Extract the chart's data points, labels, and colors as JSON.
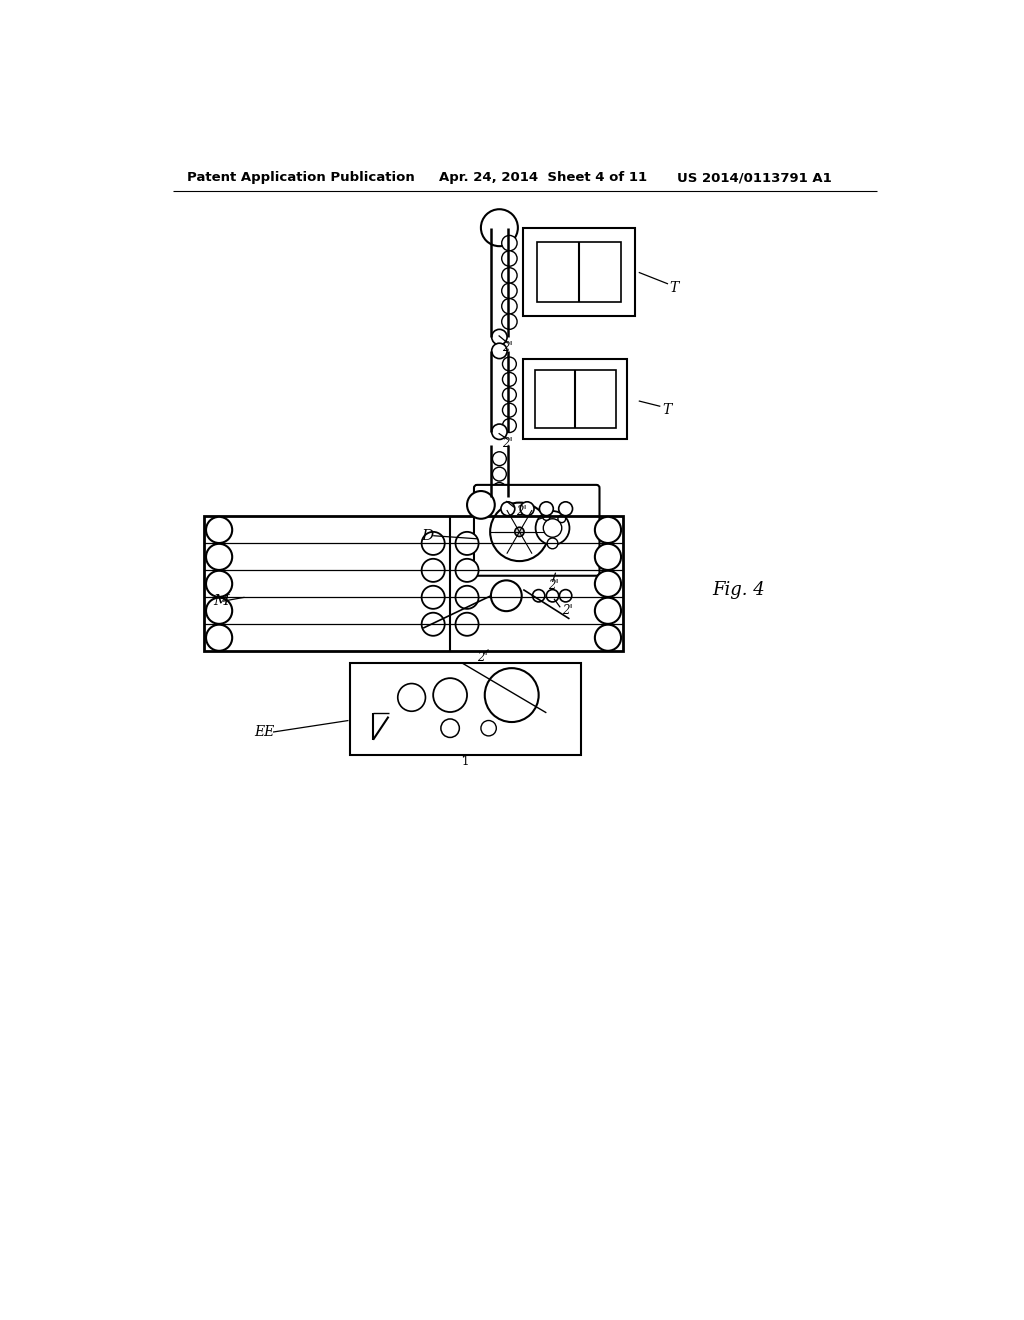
{
  "title_left": "Patent Application Publication",
  "title_mid": "Apr. 24, 2014  Sheet 4 of 11",
  "title_right": "US 2014/0113791 A1",
  "fig_label": "Fig. 4",
  "background": "#ffffff",
  "line_color": "#000000",
  "text_color": "#000000"
}
